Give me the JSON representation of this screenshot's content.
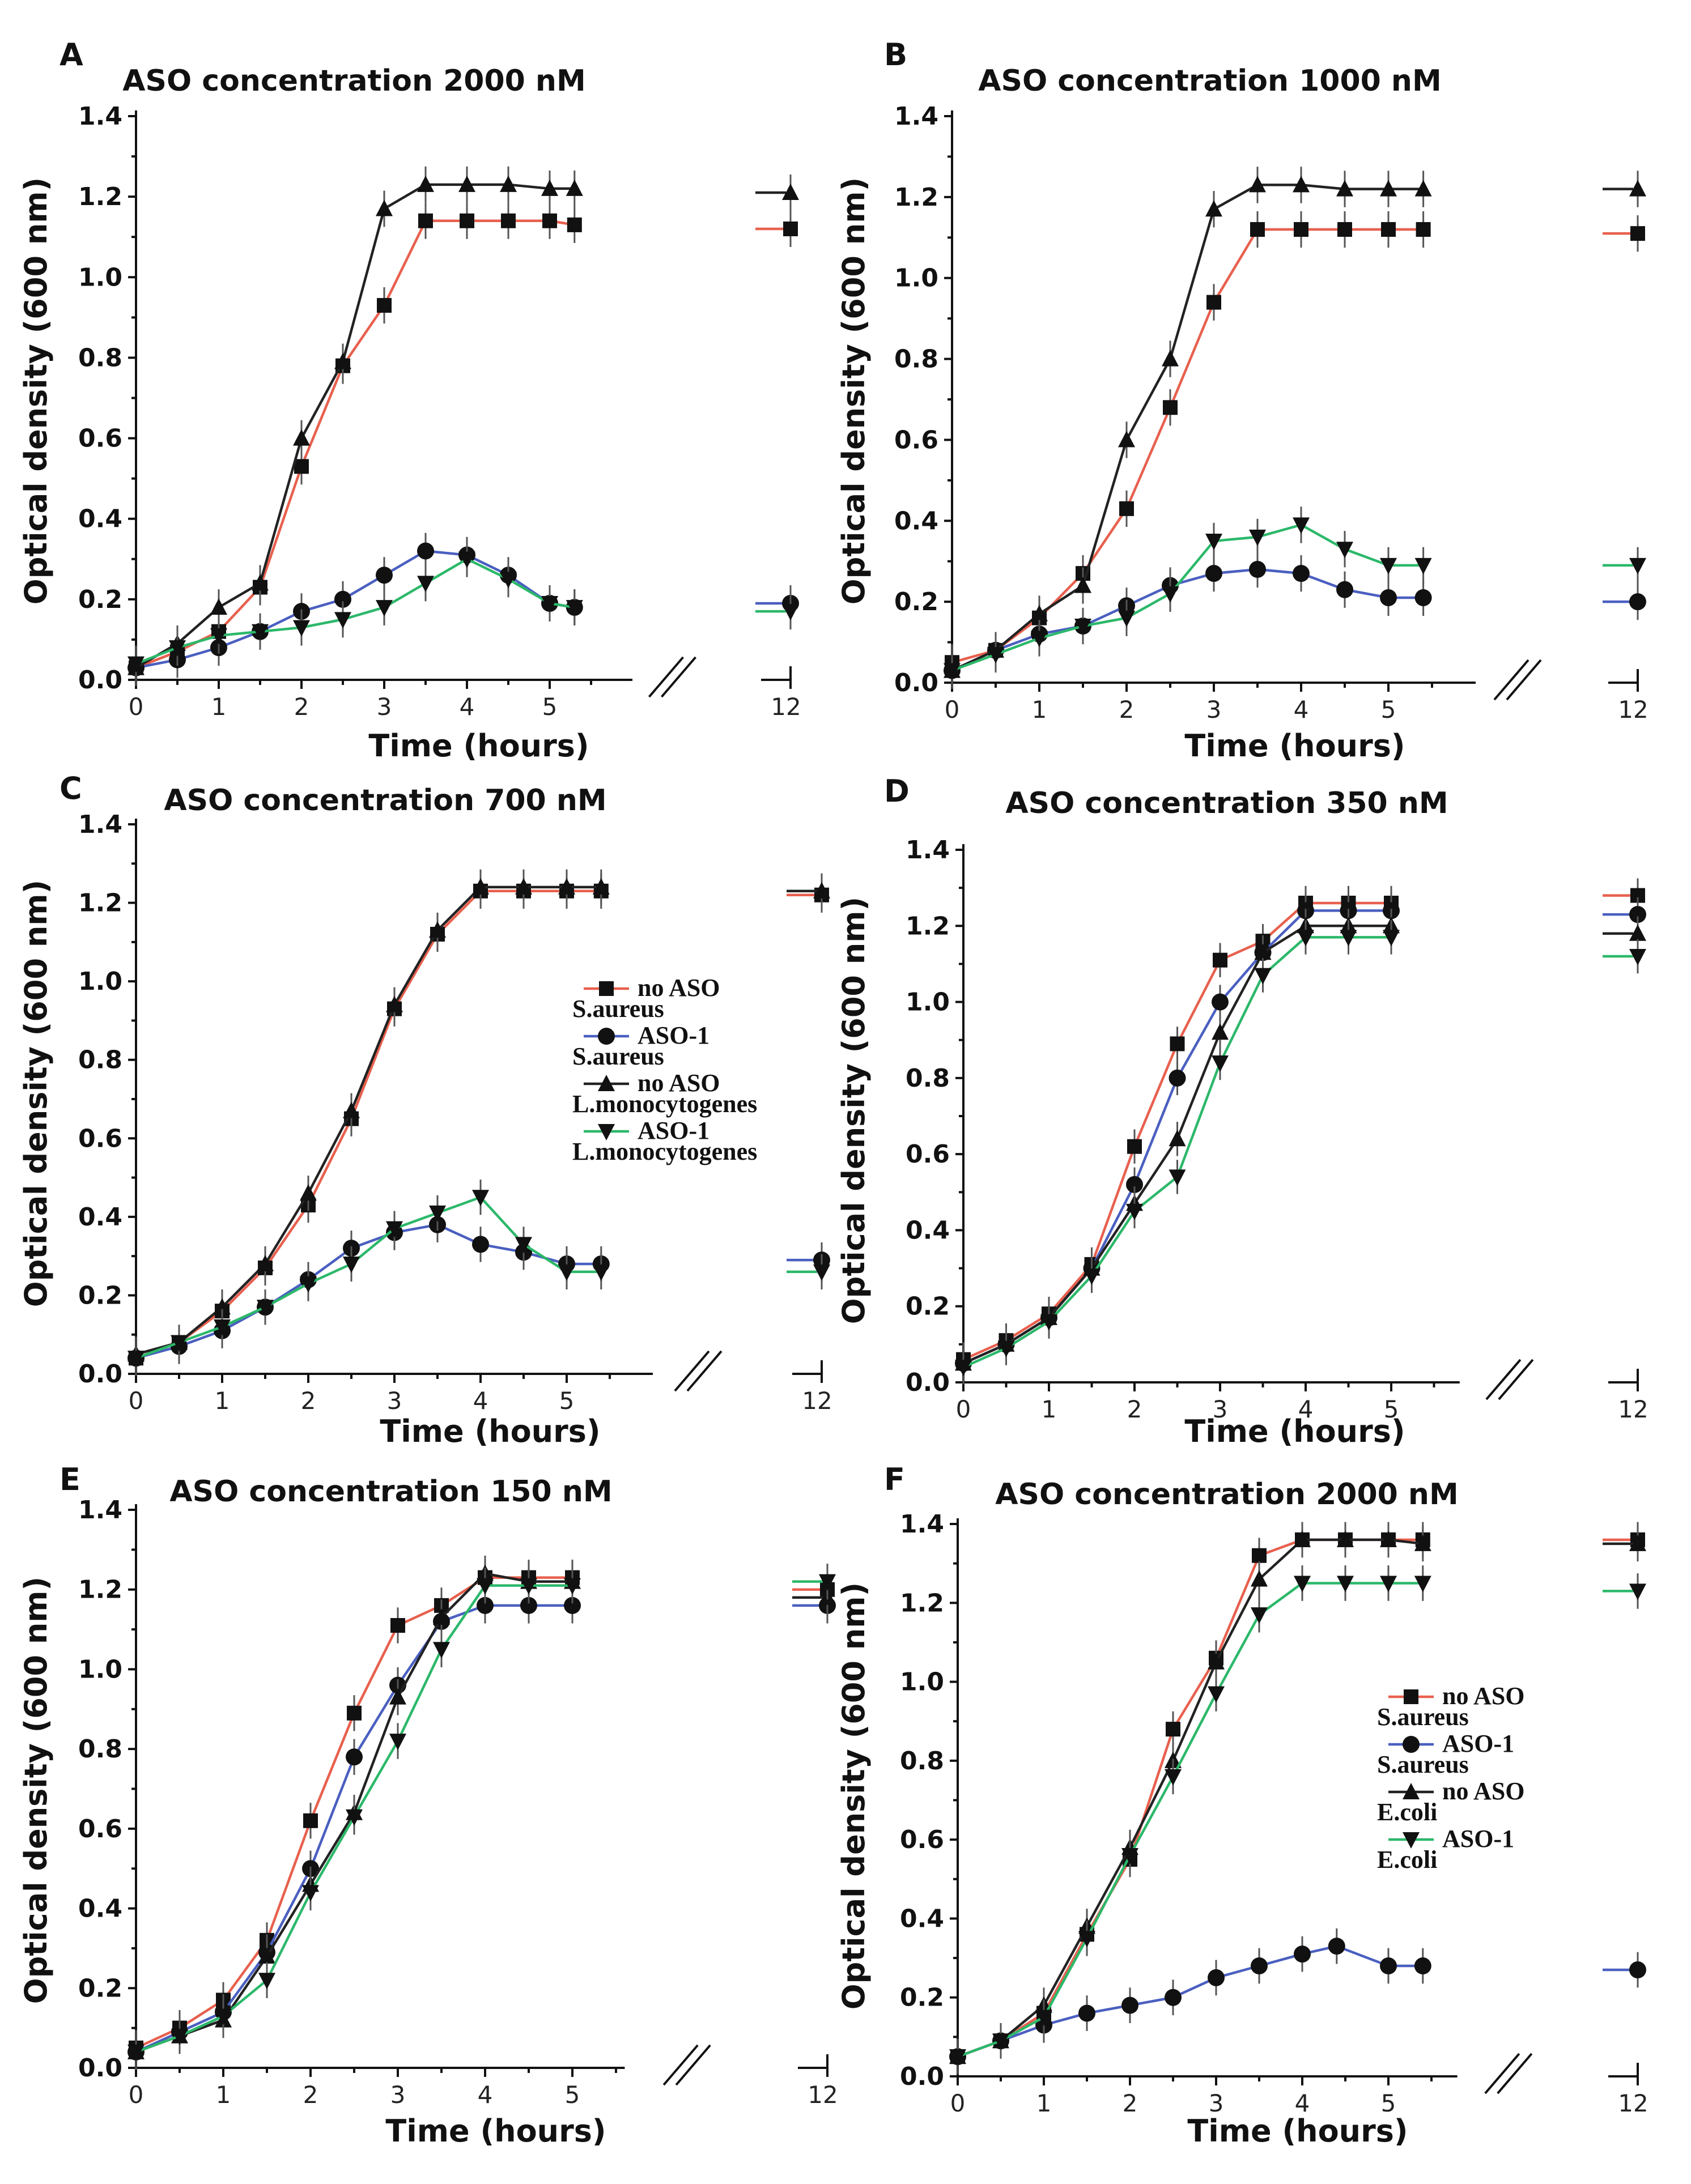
{
  "figure": {
    "break_symbol": "//"
  },
  "colors": {
    "no ASO S.aureus": "#e8604e",
    "ASO-1 S.aureus": "#4a5fc0",
    "no ASO L.monocytogenes": "#222222",
    "ASO-1 L.monocytogenes": "#2cb86a",
    "no ASO E.coli": "#222222",
    "ASO-1 E.coli": "#2cb86a"
  },
  "chart_data": [
    {
      "id": "A",
      "letter": "A",
      "type": "line",
      "title": "ASO concentration 2000 nM",
      "xlabel": "Time (hours)",
      "ylabel": "Optical density (600 nm)",
      "xlim": [
        0,
        6
      ],
      "ylim": [
        0,
        1.4
      ],
      "xticks": [
        0,
        1,
        2,
        3,
        4,
        5
      ],
      "yticks": [
        0.0,
        0.2,
        0.4,
        0.6,
        0.8,
        1.0,
        1.2,
        1.4
      ],
      "ytick_labels": [
        "0.0",
        "0.2",
        "0.4",
        "0.6",
        "0.8",
        "1.0",
        "1.2",
        "1.4"
      ],
      "break_tick_label": "12",
      "series": [
        {
          "name": "no ASO S.aureus",
          "marker": "square",
          "x": [
            0,
            0.5,
            1,
            1.5,
            2,
            2.5,
            3,
            3.5,
            4,
            4.5,
            5,
            5.3
          ],
          "values": [
            0.03,
            0.07,
            0.12,
            0.23,
            0.53,
            0.78,
            0.93,
            1.14,
            1.14,
            1.14,
            1.14,
            1.13
          ],
          "value_12h": 1.12
        },
        {
          "name": "ASO-1 S.aureus",
          "marker": "circle",
          "x": [
            0,
            0.5,
            1,
            1.5,
            2,
            2.5,
            3,
            3.5,
            4,
            4.5,
            5,
            5.3
          ],
          "values": [
            0.03,
            0.05,
            0.08,
            0.12,
            0.17,
            0.2,
            0.26,
            0.32,
            0.31,
            0.26,
            0.19,
            0.18
          ],
          "value_12h": 0.19
        },
        {
          "name": "no ASO L.monocytogenes",
          "marker": "triangle-up",
          "x": [
            0,
            0.5,
            1,
            1.5,
            2,
            2.5,
            3,
            3.5,
            4,
            4.5,
            5,
            5.3
          ],
          "values": [
            0.03,
            0.09,
            0.18,
            0.24,
            0.6,
            0.79,
            1.17,
            1.23,
            1.23,
            1.23,
            1.22,
            1.22
          ],
          "value_12h": 1.21
        },
        {
          "name": "ASO-1 L.monocytogenes",
          "marker": "triangle-down",
          "x": [
            0,
            0.5,
            1,
            1.5,
            2,
            2.5,
            3,
            3.5,
            4,
            4.5,
            5,
            5.3
          ],
          "values": [
            0.04,
            0.08,
            0.11,
            0.12,
            0.13,
            0.15,
            0.18,
            0.24,
            0.3,
            0.25,
            0.19,
            0.18
          ],
          "value_12h": 0.17
        }
      ]
    },
    {
      "id": "B",
      "letter": "B",
      "type": "line",
      "title": "ASO concentration 1000 nM",
      "xlabel": "Time (hours)",
      "ylabel": "Optical density (600 nm)",
      "xlim": [
        0,
        6
      ],
      "ylim": [
        0,
        1.4
      ],
      "xticks": [
        0,
        1,
        2,
        3,
        4,
        5
      ],
      "yticks": [
        0.0,
        0.2,
        0.4,
        0.6,
        0.8,
        1.0,
        1.2,
        1.4
      ],
      "ytick_labels": [
        "0.0",
        "0.2",
        "0.4",
        "0.6",
        "0.8",
        "1.0",
        "1.2",
        "1.4"
      ],
      "break_tick_label": "12",
      "series": [
        {
          "name": "no ASO S.aureus",
          "marker": "square",
          "x": [
            0,
            0.5,
            1,
            1.5,
            2,
            2.5,
            3,
            3.5,
            4,
            4.5,
            5,
            5.4
          ],
          "values": [
            0.05,
            0.08,
            0.16,
            0.27,
            0.43,
            0.68,
            0.94,
            1.12,
            1.12,
            1.12,
            1.12,
            1.12
          ],
          "value_12h": 1.11
        },
        {
          "name": "ASO-1 S.aureus",
          "marker": "circle",
          "x": [
            0,
            0.5,
            1,
            1.5,
            2,
            2.5,
            3,
            3.5,
            4,
            4.5,
            5,
            5.4
          ],
          "values": [
            0.03,
            0.08,
            0.12,
            0.14,
            0.19,
            0.24,
            0.27,
            0.28,
            0.27,
            0.23,
            0.21,
            0.21
          ],
          "value_12h": 0.2
        },
        {
          "name": "no ASO L.monocytogenes",
          "marker": "triangle-up",
          "x": [
            0,
            0.5,
            1,
            1.5,
            2,
            2.5,
            3,
            3.5,
            4,
            4.5,
            5,
            5.4
          ],
          "values": [
            0.03,
            0.08,
            0.17,
            0.24,
            0.6,
            0.8,
            1.17,
            1.23,
            1.23,
            1.22,
            1.22,
            1.22
          ],
          "value_12h": 1.22
        },
        {
          "name": "ASO-1 L.monocytogenes",
          "marker": "triangle-down",
          "x": [
            0,
            0.5,
            1,
            1.5,
            2,
            2.5,
            3,
            3.5,
            4,
            4.5,
            5,
            5.4
          ],
          "values": [
            0.03,
            0.07,
            0.11,
            0.14,
            0.16,
            0.22,
            0.35,
            0.36,
            0.39,
            0.33,
            0.29,
            0.29
          ],
          "value_12h": 0.29
        }
      ]
    },
    {
      "id": "C",
      "letter": "C",
      "type": "line",
      "title": "ASO concentration 700 nM",
      "xlabel": "Time (hours)",
      "ylabel": "Optical density (600 nm)",
      "xlim": [
        0,
        6
      ],
      "ylim": [
        0,
        1.4
      ],
      "xticks": [
        0,
        1,
        2,
        3,
        4,
        5
      ],
      "yticks": [
        0.0,
        0.2,
        0.4,
        0.6,
        0.8,
        1.0,
        1.2,
        1.4
      ],
      "ytick_labels": [
        "0.0",
        "0.2",
        "0.4",
        "0.6",
        "0.8",
        "1.0",
        "1.2",
        "1.4"
      ],
      "break_tick_label": "12",
      "legend": {
        "position": "center-right",
        "entries": [
          {
            "series": "no ASO S.aureus",
            "line1": "no ASO",
            "line2": "S.aureus"
          },
          {
            "series": "ASO-1 S.aureus",
            "line1": "ASO-1",
            "line2": "S.aureus"
          },
          {
            "series": "no ASO L.monocytogenes",
            "line1": "no ASO",
            "line2": "L.monocytogenes"
          },
          {
            "series": "ASO-1 L.monocytogenes",
            "line1": "ASO-1",
            "line2": "L.monocytogenes"
          }
        ]
      },
      "series": [
        {
          "name": "no ASO S.aureus",
          "marker": "square",
          "x": [
            0,
            0.5,
            1,
            1.5,
            2,
            2.5,
            3,
            3.5,
            4,
            4.5,
            5,
            5.4
          ],
          "values": [
            0.04,
            0.08,
            0.16,
            0.27,
            0.43,
            0.65,
            0.93,
            1.12,
            1.23,
            1.23,
            1.23,
            1.23
          ],
          "value_12h": 1.22
        },
        {
          "name": "ASO-1 S.aureus",
          "marker": "circle",
          "x": [
            0,
            0.5,
            1,
            1.5,
            2,
            2.5,
            3,
            3.5,
            4,
            4.5,
            5,
            5.4
          ],
          "values": [
            0.04,
            0.07,
            0.11,
            0.17,
            0.24,
            0.32,
            0.36,
            0.38,
            0.33,
            0.31,
            0.28,
            0.28
          ],
          "value_12h": 0.29
        },
        {
          "name": "no ASO L.monocytogenes",
          "marker": "triangle-up",
          "x": [
            0,
            0.5,
            1,
            1.5,
            2,
            2.5,
            3,
            3.5,
            4,
            4.5,
            5,
            5.4
          ],
          "values": [
            0.05,
            0.08,
            0.17,
            0.28,
            0.46,
            0.67,
            0.94,
            1.13,
            1.24,
            1.24,
            1.24,
            1.24
          ],
          "value_12h": 1.23
        },
        {
          "name": "ASO-1 L.monocytogenes",
          "marker": "triangle-down",
          "x": [
            0,
            0.5,
            1,
            1.5,
            2,
            2.5,
            3,
            3.5,
            4,
            4.5,
            5,
            5.4
          ],
          "values": [
            0.04,
            0.08,
            0.12,
            0.17,
            0.23,
            0.28,
            0.37,
            0.41,
            0.45,
            0.33,
            0.26,
            0.26
          ],
          "value_12h": 0.26
        }
      ]
    },
    {
      "id": "D",
      "letter": "D",
      "type": "line",
      "title": "ASO concentration 350 nM",
      "xlabel": "Time (hours)",
      "ylabel": "Optical density (600 nm)",
      "xlim": [
        0,
        5.8
      ],
      "ylim": [
        0,
        1.4
      ],
      "xticks": [
        0,
        1,
        2,
        3,
        4,
        5
      ],
      "yticks": [
        0.0,
        0.2,
        0.4,
        0.6,
        0.8,
        1.0,
        1.2,
        1.4
      ],
      "ytick_labels": [
        "0.0",
        "0.2",
        "0.4",
        "0.6",
        "0.8",
        "1.0",
        "1.2",
        "1.4"
      ],
      "break_tick_label": "12",
      "series": [
        {
          "name": "no ASO S.aureus",
          "marker": "square",
          "x": [
            0,
            0.5,
            1,
            1.5,
            2,
            2.5,
            3,
            3.5,
            4,
            4.5,
            5
          ],
          "values": [
            0.06,
            0.11,
            0.18,
            0.31,
            0.62,
            0.89,
            1.11,
            1.16,
            1.26,
            1.26,
            1.26
          ],
          "value_12h": 1.28
        },
        {
          "name": "ASO-1 S.aureus",
          "marker": "circle",
          "x": [
            0,
            0.5,
            1,
            1.5,
            2,
            2.5,
            3,
            3.5,
            4,
            4.5,
            5
          ],
          "values": [
            0.05,
            0.1,
            0.17,
            0.3,
            0.52,
            0.8,
            1.0,
            1.13,
            1.24,
            1.24,
            1.24
          ],
          "value_12h": 1.23
        },
        {
          "name": "no ASO L.monocytogenes",
          "marker": "triangle-up",
          "x": [
            0,
            0.5,
            1,
            1.5,
            2,
            2.5,
            3,
            3.5,
            4,
            4.5,
            5
          ],
          "values": [
            0.05,
            0.1,
            0.17,
            0.3,
            0.47,
            0.64,
            0.92,
            1.13,
            1.2,
            1.2,
            1.2
          ],
          "value_12h": 1.18
        },
        {
          "name": "ASO-1 L.monocytogenes",
          "marker": "triangle-down",
          "x": [
            0,
            0.5,
            1,
            1.5,
            2,
            2.5,
            3,
            3.5,
            4,
            4.5,
            5
          ],
          "values": [
            0.04,
            0.09,
            0.16,
            0.28,
            0.45,
            0.54,
            0.84,
            1.07,
            1.17,
            1.17,
            1.17
          ],
          "value_12h": 1.12
        }
      ]
    },
    {
      "id": "E",
      "letter": "E",
      "type": "line",
      "title": "ASO concentration 150 nM",
      "xlabel": "Time (hours)",
      "ylabel": "Optical density (600 nm)",
      "xlim": [
        0,
        5.6
      ],
      "ylim": [
        0,
        1.4
      ],
      "xticks": [
        0,
        1,
        2,
        3,
        4,
        5
      ],
      "yticks": [
        0.0,
        0.2,
        0.4,
        0.6,
        0.8,
        1.0,
        1.2,
        1.4
      ],
      "ytick_labels": [
        "0.0",
        "0.2",
        "0.4",
        "0.6",
        "0.8",
        "1.0",
        "1.2",
        "1.4"
      ],
      "break_tick_label": "12",
      "series": [
        {
          "name": "no ASO S.aureus",
          "marker": "square",
          "x": [
            0,
            0.5,
            1,
            1.5,
            2,
            2.5,
            3,
            3.5,
            4,
            4.5,
            5
          ],
          "values": [
            0.05,
            0.1,
            0.17,
            0.32,
            0.62,
            0.89,
            1.11,
            1.16,
            1.23,
            1.23,
            1.23
          ],
          "value_12h": 1.2
        },
        {
          "name": "ASO-1 S.aureus",
          "marker": "circle",
          "x": [
            0,
            0.5,
            1,
            1.5,
            2,
            2.5,
            3,
            3.5,
            4,
            4.5,
            5
          ],
          "values": [
            0.04,
            0.09,
            0.14,
            0.29,
            0.5,
            0.78,
            0.96,
            1.12,
            1.16,
            1.16,
            1.16
          ],
          "value_12h": 1.16
        },
        {
          "name": "no ASO L.monocytogenes",
          "marker": "triangle-up",
          "x": [
            0,
            0.5,
            1,
            1.5,
            2,
            2.5,
            3,
            3.5,
            4,
            4.5,
            5
          ],
          "values": [
            0.04,
            0.08,
            0.12,
            0.28,
            0.46,
            0.64,
            0.93,
            1.13,
            1.24,
            1.22,
            1.22
          ],
          "value_12h": 1.18
        },
        {
          "name": "ASO-1 L.monocytogenes",
          "marker": "triangle-down",
          "x": [
            0,
            0.5,
            1,
            1.5,
            2,
            2.5,
            3,
            3.5,
            4,
            4.5,
            5
          ],
          "values": [
            0.04,
            0.08,
            0.13,
            0.22,
            0.44,
            0.63,
            0.82,
            1.05,
            1.21,
            1.21,
            1.21
          ],
          "value_12h": 1.22
        }
      ]
    },
    {
      "id": "F",
      "letter": "F",
      "type": "line",
      "title": "ASO concentration 2000 nM",
      "xlabel": "Time (hours)",
      "ylabel": "Optical density (600 nm)",
      "xlim": [
        0,
        5.8
      ],
      "ylim": [
        0,
        1.4
      ],
      "xticks": [
        0,
        1,
        2,
        3,
        4,
        5
      ],
      "yticks": [
        0.0,
        0.2,
        0.4,
        0.6,
        0.8,
        1.0,
        1.2,
        1.4
      ],
      "ytick_labels": [
        "0.0",
        "0.2",
        "0.4",
        "0.6",
        "0.8",
        "1.0",
        "1.2",
        "1.4"
      ],
      "break_tick_label": "12",
      "legend": {
        "position": "center-right",
        "entries": [
          {
            "series": "no ASO S.aureus",
            "line1": "no ASO",
            "line2": "S.aureus"
          },
          {
            "series": "ASO-1 S.aureus",
            "line1": "ASO-1",
            "line2": "S.aureus"
          },
          {
            "series": "no ASO E.coli",
            "line1": "no ASO",
            "line2": "E.coli"
          },
          {
            "series": "ASO-1 E.coli",
            "line1": "ASO-1",
            "line2": "E.coli"
          }
        ]
      },
      "series": [
        {
          "name": "no ASO S.aureus",
          "marker": "square",
          "x": [
            0,
            0.5,
            1,
            1.5,
            2,
            2.5,
            3,
            3.5,
            4,
            4.5,
            5,
            5.4
          ],
          "values": [
            0.05,
            0.09,
            0.16,
            0.36,
            0.55,
            0.88,
            1.06,
            1.32,
            1.36,
            1.36,
            1.36,
            1.36
          ],
          "value_12h": 1.36
        },
        {
          "name": "ASO-1 S.aureus",
          "marker": "circle",
          "x": [
            0,
            0.5,
            1,
            1.5,
            2,
            2.5,
            3,
            3.5,
            4,
            4.4,
            5,
            5.4
          ],
          "values": [
            0.05,
            0.09,
            0.13,
            0.16,
            0.18,
            0.2,
            0.25,
            0.28,
            0.31,
            0.33,
            0.28,
            0.28
          ],
          "value_12h": 0.27
        },
        {
          "name": "no ASO E.coli",
          "marker": "triangle-up",
          "x": [
            0,
            0.5,
            1,
            1.5,
            2,
            2.5,
            3,
            3.5,
            4,
            4.5,
            5,
            5.4
          ],
          "values": [
            0.05,
            0.09,
            0.18,
            0.38,
            0.58,
            0.8,
            1.05,
            1.26,
            1.36,
            1.36,
            1.36,
            1.35
          ],
          "value_12h": 1.35
        },
        {
          "name": "ASO-1 E.coli",
          "marker": "triangle-down",
          "x": [
            0,
            0.5,
            1,
            1.5,
            2,
            2.5,
            3,
            3.5,
            4,
            4.5,
            5,
            5.4
          ],
          "values": [
            0.05,
            0.09,
            0.15,
            0.35,
            0.56,
            0.76,
            0.97,
            1.17,
            1.25,
            1.25,
            1.25,
            1.25
          ],
          "value_12h": 1.23
        }
      ]
    }
  ]
}
